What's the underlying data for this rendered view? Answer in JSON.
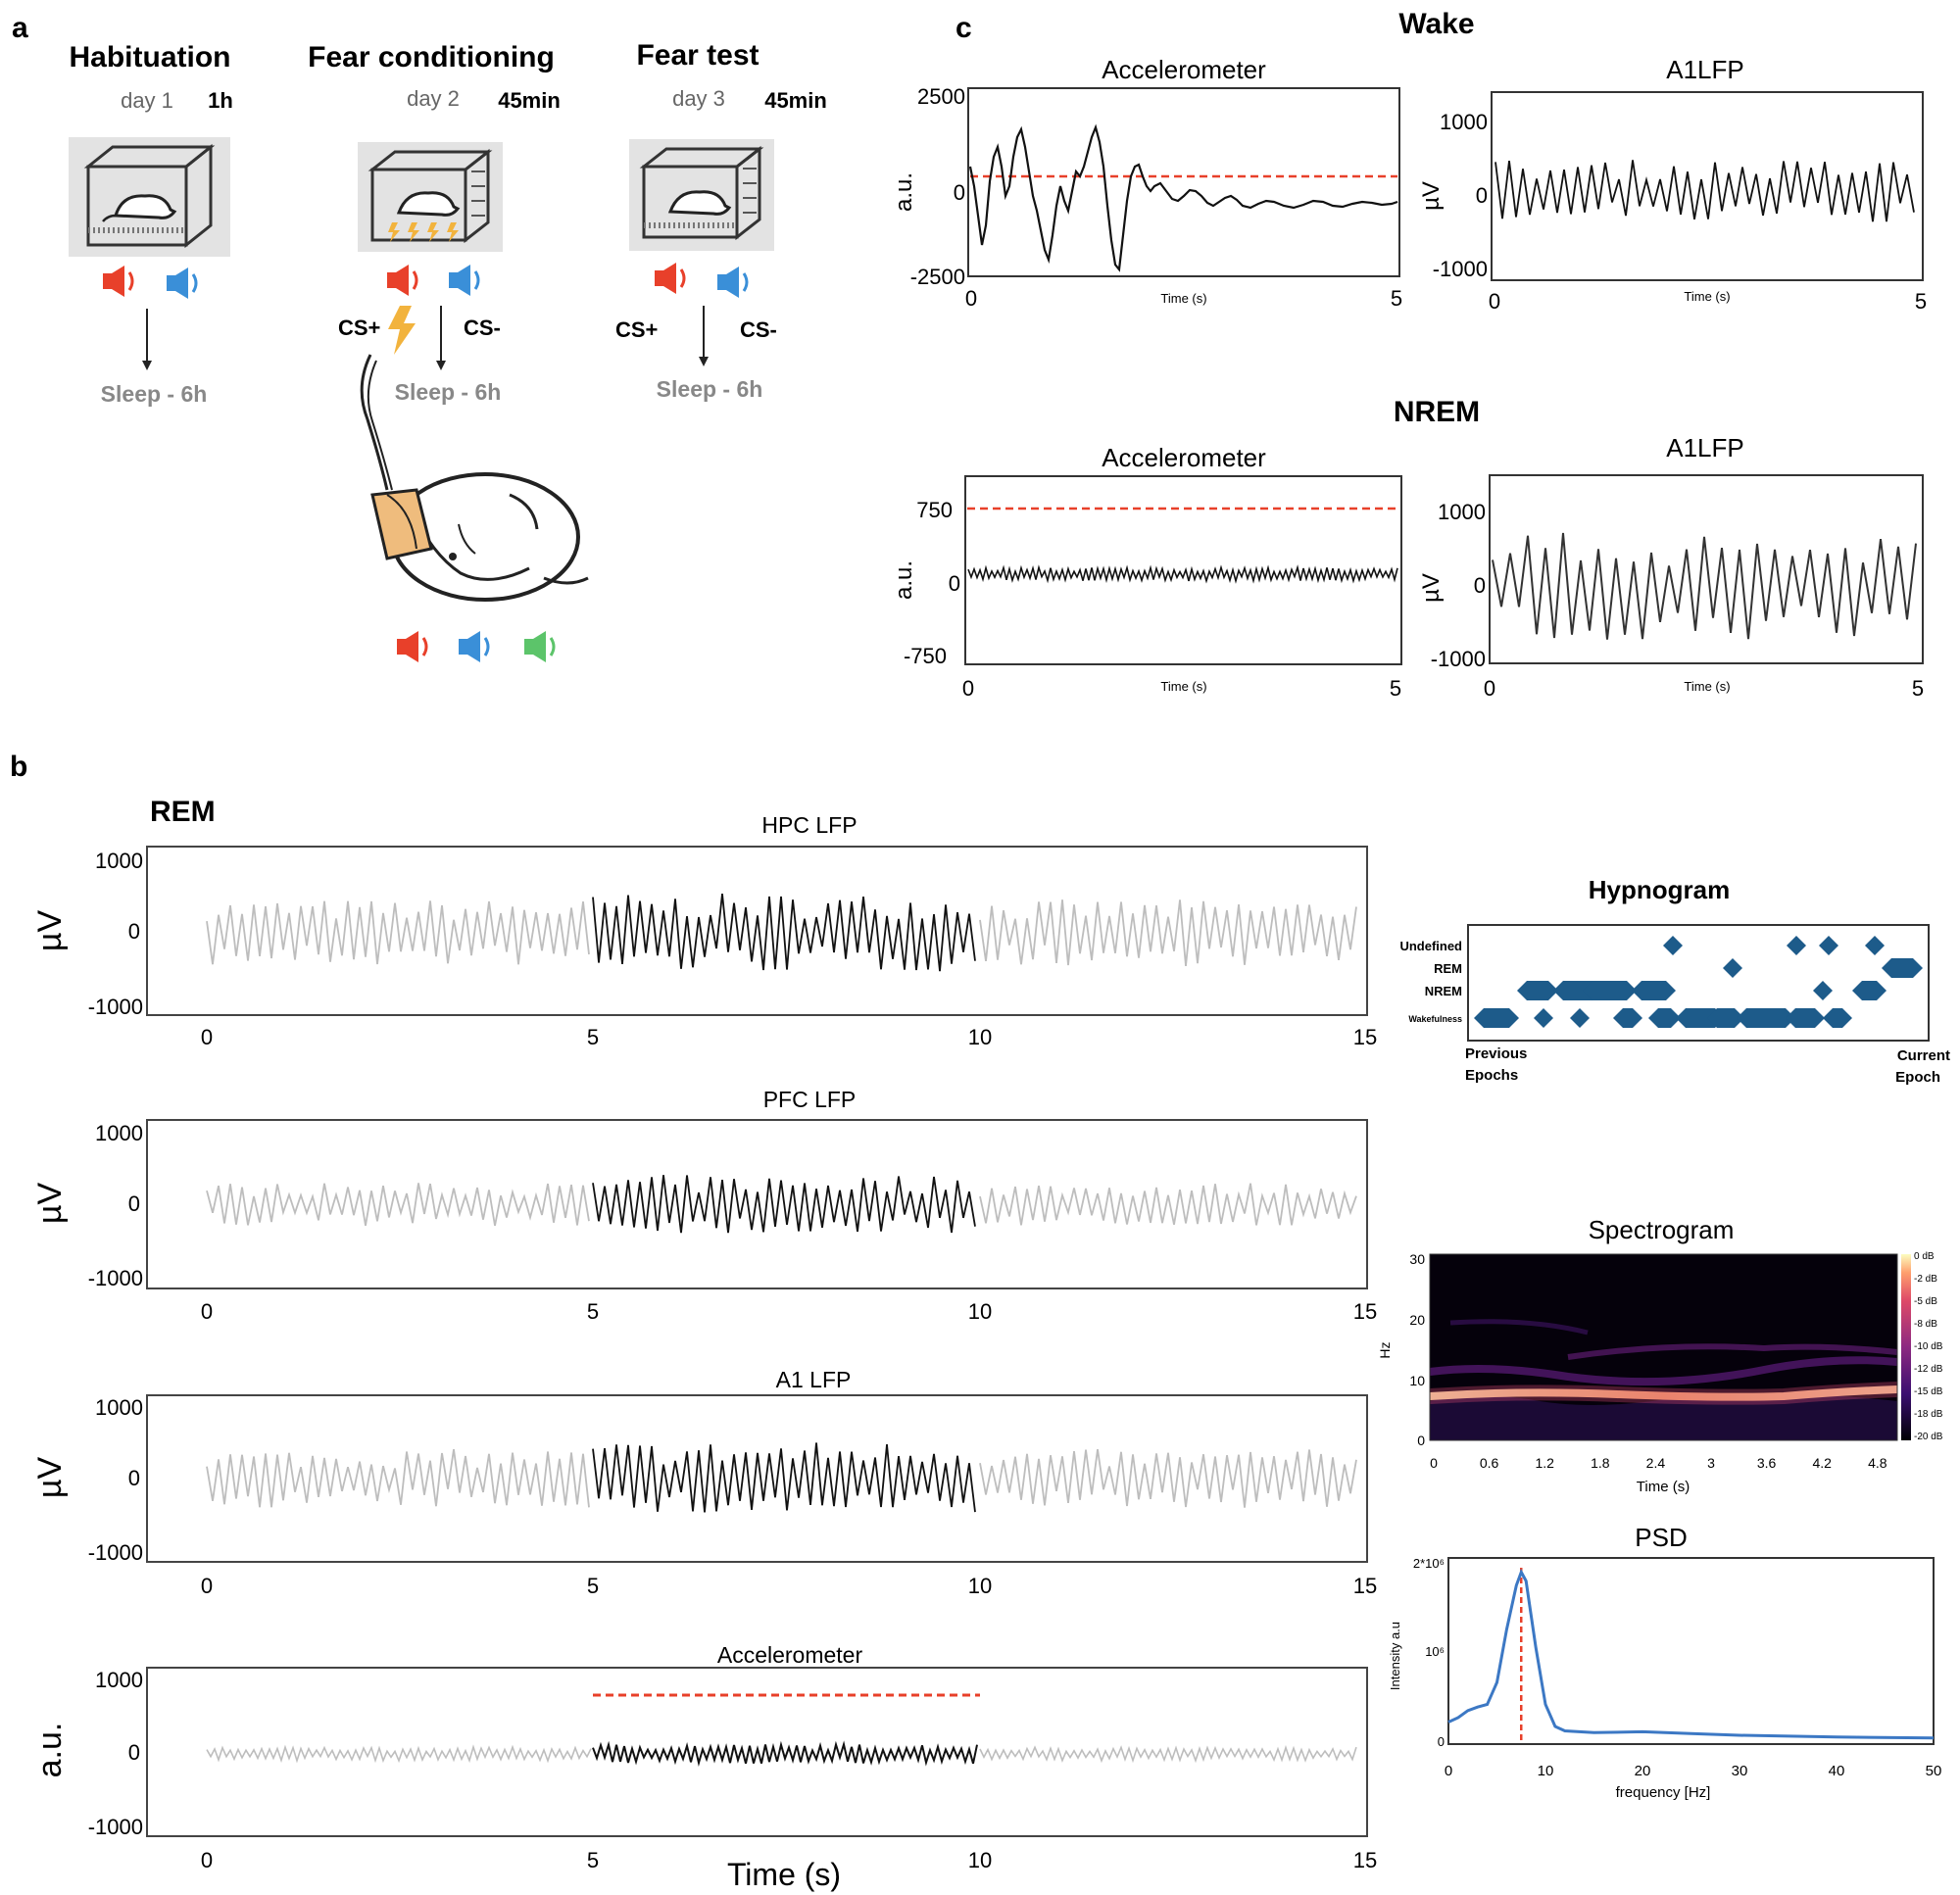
{
  "panel_a": {
    "letter": "a",
    "stages": [
      {
        "title": "Habituation",
        "day": "day 1",
        "duration": "1h",
        "cs_plus": "",
        "cs_minus": "",
        "sleep": "Sleep - 6h"
      },
      {
        "title": "Fear conditioning",
        "day": "day 2",
        "duration": "45min",
        "cs_plus": "CS+",
        "cs_minus": "CS-",
        "sleep": "Sleep - 6h"
      },
      {
        "title": "Fear test",
        "day": "day 3",
        "duration": "45min",
        "cs_plus": "CS+",
        "cs_minus": "CS-",
        "sleep": "Sleep - 6h"
      }
    ],
    "colors": {
      "red_speaker": "#e8402a",
      "blue_speaker": "#3a8fd8",
      "green_speaker": "#5cc46a",
      "shock": "#f2b33d",
      "cage_bg": "#e3e3e3",
      "headstage": "#efbc7d"
    }
  },
  "panel_b": {
    "letter": "b",
    "state": "REM",
    "xlabel": "Time (s)",
    "traces": [
      {
        "title": "HPC LFP",
        "ylabel": "µV",
        "yticks": [
          "1000",
          "0",
          "-1000"
        ],
        "xticks": [
          "0",
          "5",
          "10",
          "15"
        ]
      },
      {
        "title": "PFC LFP",
        "ylabel": "µV",
        "yticks": [
          "1000",
          "0",
          "-1000"
        ],
        "xticks": [
          "0",
          "5",
          "10",
          "15"
        ]
      },
      {
        "title": "A1 LFP",
        "ylabel": "µV",
        "yticks": [
          "1000",
          "0",
          "-1000"
        ],
        "xticks": [
          "0",
          "5",
          "10",
          "15"
        ]
      },
      {
        "title": "Accelerometer",
        "ylabel": "a.u.",
        "yticks": [
          "1000",
          "0",
          "-1000"
        ],
        "xticks": [
          "0",
          "5",
          "10",
          "15"
        ]
      }
    ],
    "highlight_window_s": [
      5,
      10
    ],
    "accel_threshold": 800,
    "hypnogram": {
      "title": "Hypnogram",
      "states": [
        "Undefined",
        "REM",
        "NREM",
        "Wakefulness"
      ],
      "left_label": [
        "Previous",
        "Epochs"
      ],
      "right_label": [
        "Current",
        "Epoch"
      ],
      "color": "#1d5b8a"
    },
    "spectrogram": {
      "title": "Spectrogram",
      "ylabel": "Hz",
      "xlabel": "Time (s)",
      "yticks": [
        "30",
        "20",
        "10",
        "0"
      ],
      "xticks": [
        "0",
        "0.6",
        "1.2",
        "1.8",
        "2.4",
        "3",
        "3.6",
        "4.2",
        "4.8"
      ],
      "colorbar": [
        "0 dB",
        "-2 dB",
        "-5 dB",
        "-8 dB",
        "-10 dB",
        "-12 dB",
        "-15 dB",
        "-18 dB",
        "-20 dB"
      ],
      "peak_band_hz": 7
    },
    "psd": {
      "title": "PSD",
      "ylabel": "Intensity a.u",
      "xlabel": "frequency [Hz]",
      "yticks": [
        "2*10⁶",
        "10⁶",
        "0"
      ],
      "xticks": [
        "0",
        "10",
        "20",
        "30",
        "40",
        "50"
      ],
      "peak_hz": 7.5
    }
  },
  "panel_c": {
    "letter": "c",
    "blocks": [
      {
        "state": "Wake",
        "accel": {
          "title": "Accelerometer",
          "ylabel": "a.u.",
          "yticks": [
            "2500",
            "0",
            "-2500"
          ],
          "xticks": [
            "0",
            "5"
          ],
          "xlabel": "Time (s)",
          "threshold": 300
        },
        "lfp": {
          "title": "A1LFP",
          "ylabel": "µV",
          "yticks": [
            "1000",
            "0",
            "-1000"
          ],
          "xticks": [
            "0",
            "5"
          ],
          "xlabel": "Time (s)"
        }
      },
      {
        "state": "NREM",
        "accel": {
          "title": "Accelerometer",
          "ylabel": "a.u.",
          "yticks": [
            "750",
            "0",
            "-750"
          ],
          "xticks": [
            "0",
            "5"
          ],
          "xlabel": "Time (s)",
          "threshold": 750
        },
        "lfp": {
          "title": "A1LFP",
          "ylabel": "µV",
          "yticks": [
            "1000",
            "0",
            "-1000"
          ],
          "xticks": [
            "0",
            "5"
          ],
          "xlabel": "Time (s)"
        }
      }
    ]
  },
  "chart_data": [
    {
      "type": "line",
      "title": "HPC LFP",
      "xlabel": "Time (s)",
      "ylabel": "µV",
      "xlim": [
        0,
        15
      ],
      "ylim": [
        -1000,
        1000
      ],
      "series": [
        {
          "values": "oscillatory trace, amplitude ~±400, highlighted 5–10 s"
        }
      ]
    },
    {
      "type": "line",
      "title": "PFC LFP",
      "xlabel": "Time (s)",
      "ylabel": "µV",
      "xlim": [
        0,
        15
      ],
      "ylim": [
        -1000,
        1000
      ],
      "series": [
        {
          "values": "oscillatory trace, amplitude ~±300, highlighted 5–10 s"
        }
      ]
    },
    {
      "type": "line",
      "title": "A1 LFP",
      "xlabel": "Time (s)",
      "ylabel": "µV",
      "xlim": [
        0,
        15
      ],
      "ylim": [
        -1000,
        1000
      ],
      "series": [
        {
          "values": "oscillatory trace, amplitude ~±400, highlighted 5–10 s"
        }
      ]
    },
    {
      "type": "line",
      "title": "Accelerometer",
      "xlabel": "Time (s)",
      "ylabel": "a.u.",
      "xlim": [
        0,
        15
      ],
      "ylim": [
        -1000,
        1000
      ],
      "threshold": 800
    },
    {
      "type": "scatter",
      "title": "Hypnogram",
      "categories": [
        "Undefined",
        "REM",
        "NREM",
        "Wakefulness"
      ]
    },
    {
      "type": "heatmap",
      "title": "Spectrogram",
      "xlabel": "Time (s)",
      "ylabel": "Hz",
      "xlim": [
        0,
        5
      ],
      "ylim": [
        0,
        30
      ],
      "peak_band_hz": 7
    },
    {
      "type": "line",
      "title": "PSD",
      "xlabel": "frequency [Hz]",
      "ylabel": "Intensity a.u",
      "xlim": [
        0,
        50
      ],
      "ylim": [
        0,
        2000000
      ],
      "x": [
        0,
        1,
        2,
        3,
        4,
        5,
        6,
        7,
        7.5,
        8,
        9,
        10,
        11,
        12,
        15,
        20,
        25,
        30,
        40,
        50
      ],
      "values": [
        250000,
        300000,
        380000,
        420000,
        450000,
        700000,
        1300000,
        1800000,
        1950000,
        1850000,
        1100000,
        450000,
        200000,
        150000,
        130000,
        140000,
        120000,
        100000,
        80000,
        70000
      ],
      "peak_hz": 7.5
    },
    {
      "type": "line",
      "title": "Accelerometer",
      "state": "Wake",
      "xlabel": "Time (s)",
      "ylabel": "a.u.",
      "xlim": [
        0,
        5
      ],
      "ylim": [
        -2500,
        2500
      ],
      "threshold": 300
    },
    {
      "type": "line",
      "title": "A1LFP",
      "state": "Wake",
      "xlabel": "Time (s)",
      "ylabel": "µV",
      "xlim": [
        0,
        5
      ],
      "ylim": [
        -1000,
        1000
      ]
    },
    {
      "type": "line",
      "title": "Accelerometer",
      "state": "NREM",
      "xlabel": "Time (s)",
      "ylabel": "a.u.",
      "xlim": [
        0,
        5
      ],
      "ylim": [
        -750,
        750
      ],
      "threshold": 750
    },
    {
      "type": "line",
      "title": "A1LFP",
      "state": "NREM",
      "xlabel": "Time (s)",
      "ylabel": "µV",
      "xlim": [
        0,
        5
      ],
      "ylim": [
        -1000,
        1000
      ]
    }
  ]
}
